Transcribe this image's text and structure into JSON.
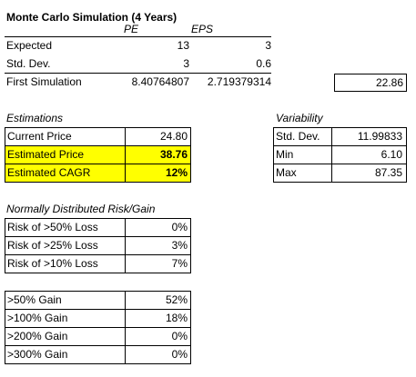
{
  "title": "Monte Carlo Simulation (4 Years)",
  "simulation": {
    "col_pe": "PE",
    "col_eps": "EPS",
    "rows": [
      {
        "label": "Expected",
        "pe": "13",
        "eps": "3"
      },
      {
        "label": "Std. Dev.",
        "pe": "3",
        "eps": "0.6"
      },
      {
        "label": "First Simulation",
        "pe": "8.40764807",
        "eps": "2.719379314"
      }
    ],
    "first_result": "22.86"
  },
  "estimations": {
    "heading": "Estimations",
    "rows": [
      {
        "label": "Current Price",
        "value": "24.80",
        "highlight": false
      },
      {
        "label": "Estimated Price",
        "value": "38.76",
        "highlight": true
      },
      {
        "label": "Estimated CAGR",
        "value": "12%",
        "highlight": true
      }
    ],
    "highlight_color": "#ffff00"
  },
  "variability": {
    "heading": "Variability",
    "rows": [
      {
        "label": "Std. Dev.",
        "value": "11.99833"
      },
      {
        "label": "Min",
        "value": "6.10"
      },
      {
        "label": "Max",
        "value": "87.35"
      }
    ]
  },
  "risk": {
    "heading": "Normally Distributed Risk/Gain",
    "rows": [
      {
        "label": "Risk of >50% Loss",
        "value": "0%"
      },
      {
        "label": "Risk of >25% Loss",
        "value": "3%"
      },
      {
        "label": "Risk of >10% Loss",
        "value": "7%"
      }
    ]
  },
  "gain": {
    "rows": [
      {
        "label": ">50% Gain",
        "value": "52%"
      },
      {
        "label": ">100% Gain",
        "value": "18%"
      },
      {
        "label": ">200% Gain",
        "value": "0%"
      },
      {
        "label": ">300% Gain",
        "value": "0%"
      }
    ]
  }
}
